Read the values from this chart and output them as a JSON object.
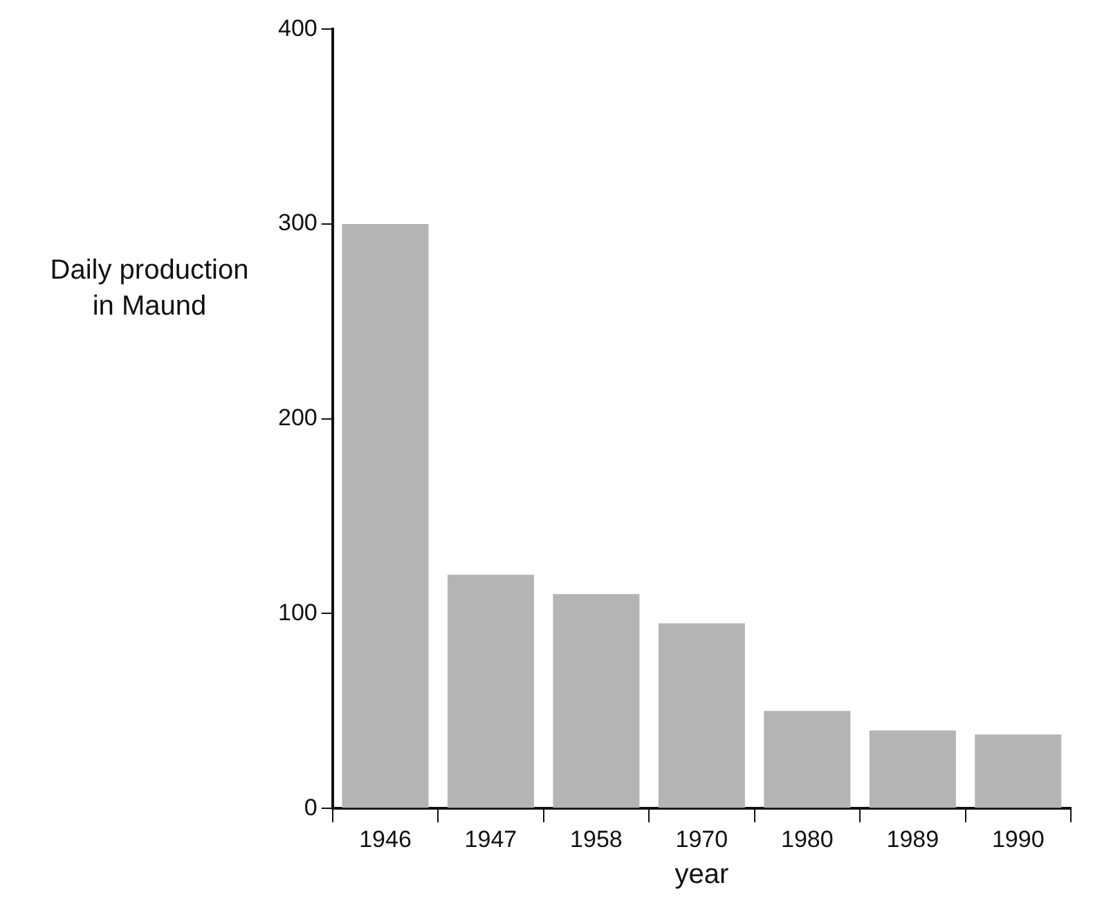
{
  "chart_data": {
    "type": "bar",
    "xlabel": "year",
    "ylabel": "Daily production in Maund",
    "categories": [
      "1946",
      "1947",
      "1958",
      "1970",
      "1980",
      "1989",
      "1990"
    ],
    "values": [
      300,
      120,
      110,
      95,
      50,
      40,
      38
    ],
    "color": "#b4b4b4",
    "ylim": [
      0,
      400
    ],
    "yticks": [
      0,
      100,
      200,
      300,
      400
    ],
    "grid": false,
    "legend": false
  }
}
